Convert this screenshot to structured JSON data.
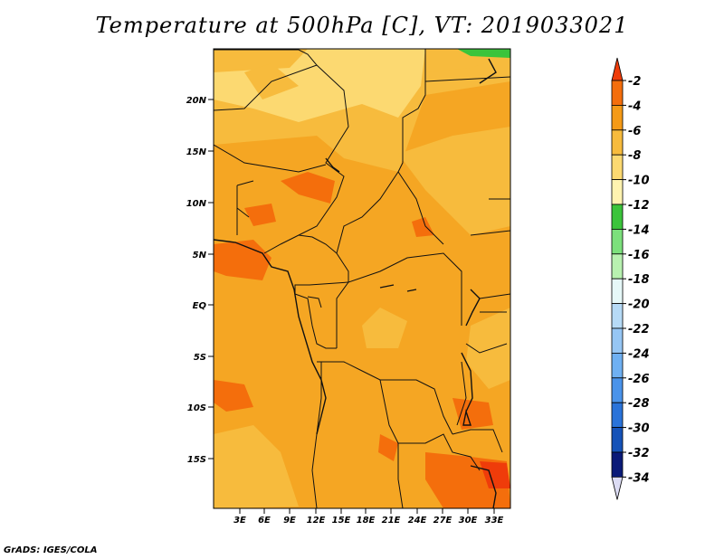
{
  "title": "Temperature at 500hPa [C], VT: 2019033021",
  "credit": "GrADS: IGES/COLA",
  "map": {
    "lat_labels": [
      "20N",
      "15N",
      "10N",
      "5N",
      "EQ",
      "5S",
      "10S",
      "15S"
    ],
    "lon_labels": [
      "3E",
      "6E",
      "9E",
      "12E",
      "15E",
      "18E",
      "21E",
      "24E",
      "27E",
      "30E",
      "33E"
    ],
    "background_color": "#f5a623"
  },
  "colorbar": {
    "levels": [
      "-2",
      "-4",
      "-6",
      "-8",
      "-10",
      "-12",
      "-14",
      "-16",
      "-18",
      "-20",
      "-22",
      "-24",
      "-26",
      "-28",
      "-30",
      "-32",
      "-34"
    ],
    "colors": [
      "#ef3c0a",
      "#f46e0c",
      "#f59a17",
      "#f7bb3d",
      "#fcd971",
      "#fff3b0",
      "#3bc43b",
      "#7ce07c",
      "#b8f1b0",
      "#e6f8f8",
      "#b6daf6",
      "#96c6f4",
      "#6fb0f2",
      "#4a93ea",
      "#2a73d9",
      "#1552b8",
      "#0a1a78",
      "#dcdcf4"
    ]
  }
}
